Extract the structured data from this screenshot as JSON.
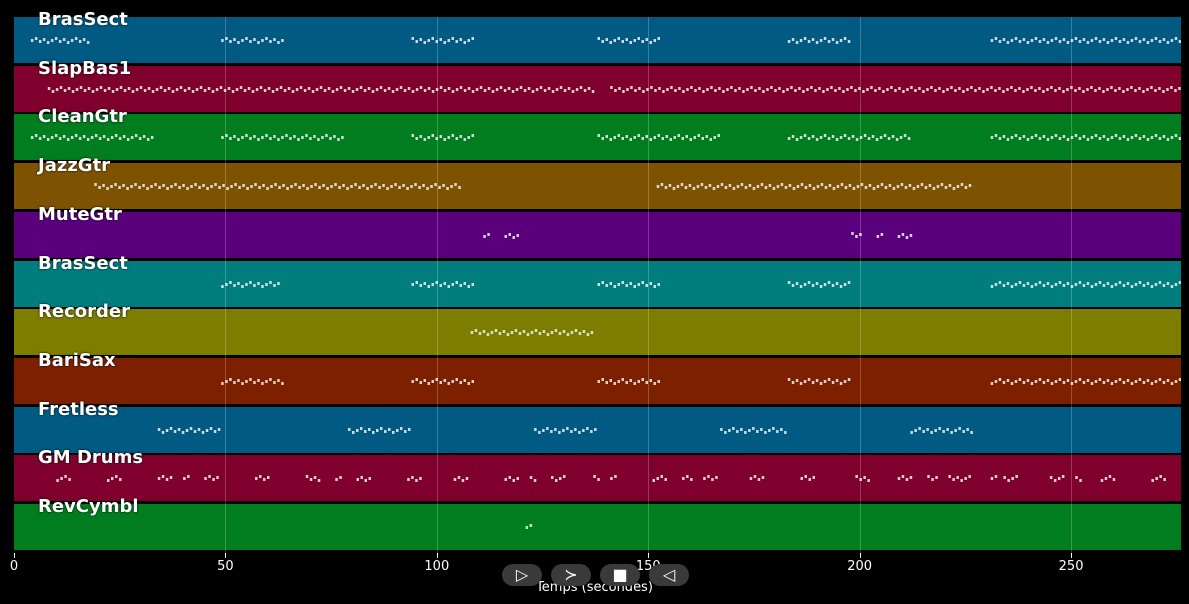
{
  "x_axis": {
    "label": "Temps (secondes)",
    "range": [
      0,
      276
    ],
    "ticks": [
      0,
      50,
      100,
      150,
      200,
      250
    ]
  },
  "tracks": [
    {
      "name": "BrasSect",
      "color": "#005a82",
      "notes": [
        [
          4,
          18
        ],
        [
          49,
          64
        ],
        [
          94,
          109
        ],
        [
          138,
          153
        ],
        [
          183,
          198
        ],
        [
          231,
          276
        ]
      ]
    },
    {
      "name": "SlapBas1",
      "color": "#7f002c",
      "notes": [
        [
          8,
          137
        ],
        [
          141,
          276
        ]
      ]
    },
    {
      "name": "CleanGtr",
      "color": "#007d1e",
      "notes": [
        [
          4,
          33
        ],
        [
          49,
          78
        ],
        [
          94,
          109
        ],
        [
          138,
          167
        ],
        [
          183,
          212
        ],
        [
          231,
          276
        ]
      ]
    },
    {
      "name": "JazzGtr",
      "color": "#7d5200",
      "notes": [
        [
          19,
          106
        ],
        [
          152,
          226
        ]
      ]
    },
    {
      "name": "MuteGtr",
      "color": "#5a007d",
      "notes": [
        [
          111,
          112
        ],
        [
          116,
          119
        ],
        [
          198,
          200
        ],
        [
          204,
          205
        ],
        [
          209,
          212
        ]
      ]
    },
    {
      "name": "BrasSect",
      "color": "#007d7d",
      "notes": [
        [
          49,
          63
        ],
        [
          94,
          109
        ],
        [
          138,
          153
        ],
        [
          183,
          198
        ],
        [
          231,
          276
        ]
      ]
    },
    {
      "name": "Recorder",
      "color": "#7d7d00",
      "notes": [
        [
          108,
          137
        ]
      ]
    },
    {
      "name": "BariSax",
      "color": "#7d2000",
      "notes": [
        [
          49,
          64
        ],
        [
          94,
          109
        ],
        [
          138,
          153
        ],
        [
          183,
          198
        ],
        [
          231,
          276
        ]
      ]
    },
    {
      "name": "Fretless",
      "color": "#005a82",
      "notes": [
        [
          34,
          49
        ],
        [
          79,
          94
        ],
        [
          123,
          138
        ],
        [
          167,
          183
        ],
        [
          212,
          227
        ]
      ]
    },
    {
      "name": "GM Drums",
      "color": "#7f002c",
      "notes": [
        [
          10,
          13
        ],
        [
          22,
          25
        ],
        [
          34,
          37
        ],
        [
          40,
          41
        ],
        [
          45,
          48
        ],
        [
          57,
          60
        ],
        [
          69,
          72
        ],
        [
          76,
          77
        ],
        [
          81,
          84
        ],
        [
          93,
          96
        ],
        [
          104,
          107
        ],
        [
          116,
          119
        ],
        [
          122,
          123
        ],
        [
          127,
          130
        ],
        [
          137,
          138
        ],
        [
          141,
          142
        ],
        [
          151,
          154
        ],
        [
          158,
          160
        ],
        [
          163,
          166
        ],
        [
          174,
          177
        ],
        [
          186,
          189
        ],
        [
          199,
          202
        ],
        [
          209,
          212
        ],
        [
          216,
          218
        ],
        [
          221,
          226
        ],
        [
          231,
          232
        ],
        [
          234,
          237
        ],
        [
          245,
          248
        ],
        [
          251,
          252
        ],
        [
          257,
          260
        ],
        [
          269,
          272
        ]
      ]
    },
    {
      "name": "RevCymbl",
      "color": "#007d1e",
      "notes": [
        [
          121,
          122
        ]
      ]
    }
  ],
  "controls": {
    "play": "▷",
    "forward": "≻",
    "stop": "■",
    "back": "◁"
  }
}
